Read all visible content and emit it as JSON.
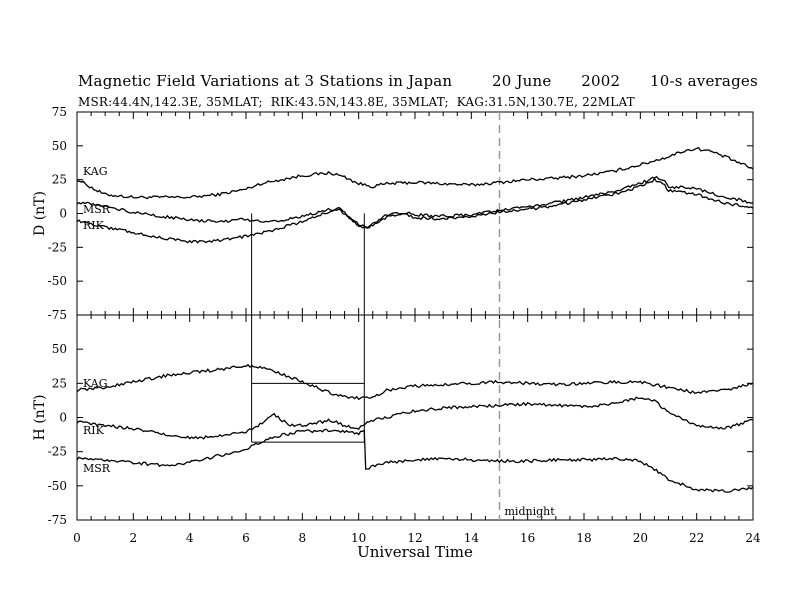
{
  "title": "Magnetic Field Variations at 3 Stations in Japan        20 June      2002      10-s averages",
  "subtitle": "MSR:44.4N,142.3E, 35MLAT;  RIK:43.5N,143.8E, 35MLAT;  KAG:31.5N,130.7E, 22MLAT",
  "chart_data": [
    {
      "type": "line",
      "panel": "top",
      "ylabel": "D (nT)",
      "xlabel": "",
      "xlim": [
        0,
        24
      ],
      "ylim": [
        -75,
        75
      ],
      "yticks": [
        -75,
        -50,
        -25,
        0,
        25,
        50,
        75
      ],
      "series": [
        {
          "name": "KAG",
          "x": [
            0,
            0.3,
            0.6,
            1,
            1.5,
            2,
            3,
            4,
            5,
            6,
            6.5,
            7,
            7.5,
            8,
            8.5,
            9,
            9.5,
            10,
            10.5,
            11,
            12,
            13,
            14,
            15,
            16,
            17,
            18,
            19,
            20,
            21,
            21.5,
            22,
            22.5,
            23,
            24
          ],
          "values": [
            25,
            22,
            18,
            14,
            13,
            12,
            12,
            12,
            14,
            18,
            22,
            24,
            26,
            28,
            29,
            30,
            27,
            22,
            20,
            22,
            23,
            22,
            21,
            23,
            25,
            26,
            28,
            31,
            36,
            42,
            46,
            48,
            46,
            42,
            33
          ]
        },
        {
          "name": "MSR",
          "x": [
            0,
            0.5,
            1,
            2,
            3,
            4,
            5,
            6,
            6.2,
            7,
            8,
            9,
            9.3,
            10,
            10.3,
            11,
            11.5,
            12,
            13,
            14,
            15,
            16,
            17,
            18,
            19,
            20,
            20.5,
            20.8,
            21,
            22,
            23,
            24
          ],
          "values": [
            8,
            7,
            5,
            1,
            -2,
            -5,
            -6,
            -4,
            -5,
            -6,
            -2,
            3,
            3,
            -8,
            -10,
            -1,
            1,
            -1,
            -2,
            -1,
            2,
            5,
            8,
            12,
            16,
            22,
            27,
            25,
            20,
            18,
            12,
            8
          ]
        },
        {
          "name": "RIK",
          "x": [
            0,
            0.5,
            1,
            2,
            3,
            4,
            5,
            6,
            6.2,
            7,
            8,
            9,
            9.3,
            10,
            10.3,
            11,
            11.5,
            12,
            13,
            14,
            15,
            16,
            17,
            18,
            19,
            20,
            20.5,
            20.8,
            21,
            22,
            23,
            24
          ],
          "values": [
            -5,
            -8,
            -10,
            -14,
            -18,
            -21,
            -20,
            -17,
            -16,
            -12,
            -6,
            2,
            4,
            -9,
            -11,
            -3,
            0,
            -3,
            -4,
            -2,
            1,
            3,
            6,
            10,
            14,
            20,
            25,
            23,
            17,
            14,
            8,
            4
          ]
        }
      ],
      "annotations": [
        {
          "text": "KAG",
          "series": "KAG"
        },
        {
          "text": "MSR",
          "series": "MSR"
        },
        {
          "text": "RIK",
          "series": "RIK"
        }
      ]
    },
    {
      "type": "line",
      "panel": "bottom",
      "ylabel": "H (nT)",
      "xlabel": "Universal Time",
      "xlim": [
        0,
        24
      ],
      "ylim": [
        -75,
        75
      ],
      "yticks": [
        -75,
        -50,
        -25,
        0,
        25,
        50
      ],
      "xticks": [
        0,
        2,
        4,
        6,
        8,
        10,
        12,
        14,
        16,
        18,
        20,
        22,
        24
      ],
      "series": [
        {
          "name": "KAG",
          "x": [
            0,
            1,
            2,
            3,
            4,
            5,
            6,
            6.5,
            7,
            7.5,
            8,
            8.5,
            9,
            9.5,
            10,
            10.5,
            11,
            12,
            13,
            14,
            15,
            16,
            17,
            18,
            19,
            20,
            20.5,
            21,
            22,
            23,
            24
          ],
          "values": [
            20,
            22,
            26,
            30,
            33,
            35,
            38,
            37,
            34,
            30,
            26,
            22,
            18,
            15,
            14,
            15,
            20,
            23,
            24,
            25,
            26,
            25,
            24,
            25,
            26,
            26,
            24,
            22,
            18,
            20,
            25
          ]
        },
        {
          "name": "RIK",
          "x": [
            0,
            1,
            2,
            3,
            4,
            5,
            6,
            6.2,
            6.5,
            7,
            7.5,
            8,
            8.5,
            9,
            9.5,
            10,
            10.3,
            11,
            12,
            13,
            14,
            15,
            16,
            17,
            18,
            19,
            20,
            20.5,
            21,
            22,
            23,
            24
          ],
          "values": [
            -3,
            -6,
            -8,
            -12,
            -15,
            -14,
            -10,
            -8,
            -5,
            2,
            -5,
            -6,
            -4,
            -2,
            -6,
            -8,
            -3,
            0,
            5,
            7,
            8,
            9,
            10,
            9,
            8,
            10,
            15,
            12,
            4,
            -6,
            -8,
            -2
          ]
        },
        {
          "name": "MSR",
          "x": [
            0,
            1,
            2,
            3,
            4,
            5,
            6,
            6.2,
            6.5,
            7,
            7.5,
            8,
            8.5,
            9,
            9.5,
            10,
            10.2,
            10.3,
            11,
            12,
            13,
            14,
            15,
            16,
            17,
            18,
            19,
            20,
            20.5,
            21,
            22,
            23,
            24
          ],
          "values": [
            -30,
            -31,
            -33,
            -35,
            -33,
            -28,
            -24,
            -20,
            -18,
            -14,
            -12,
            -10,
            -10,
            -9,
            -10,
            -12,
            -10,
            -37,
            -33,
            -31,
            -30,
            -31,
            -32,
            -32,
            -31,
            -31,
            -30,
            -32,
            -38,
            -45,
            -53,
            -54,
            -51
          ]
        }
      ],
      "annotations": [
        {
          "text": "KAG",
          "series": "KAG"
        },
        {
          "text": "RIK",
          "series": "RIK"
        },
        {
          "text": "MSR",
          "series": "MSR"
        },
        {
          "text": "midnight"
        }
      ]
    }
  ],
  "midnight_ut": 15,
  "midnight_label": "midnight",
  "box_x_range": [
    6.2,
    10.2
  ],
  "box_h_range": [
    -18,
    25
  ],
  "colors": {
    "line": "#000000",
    "dashed": "#999999"
  }
}
